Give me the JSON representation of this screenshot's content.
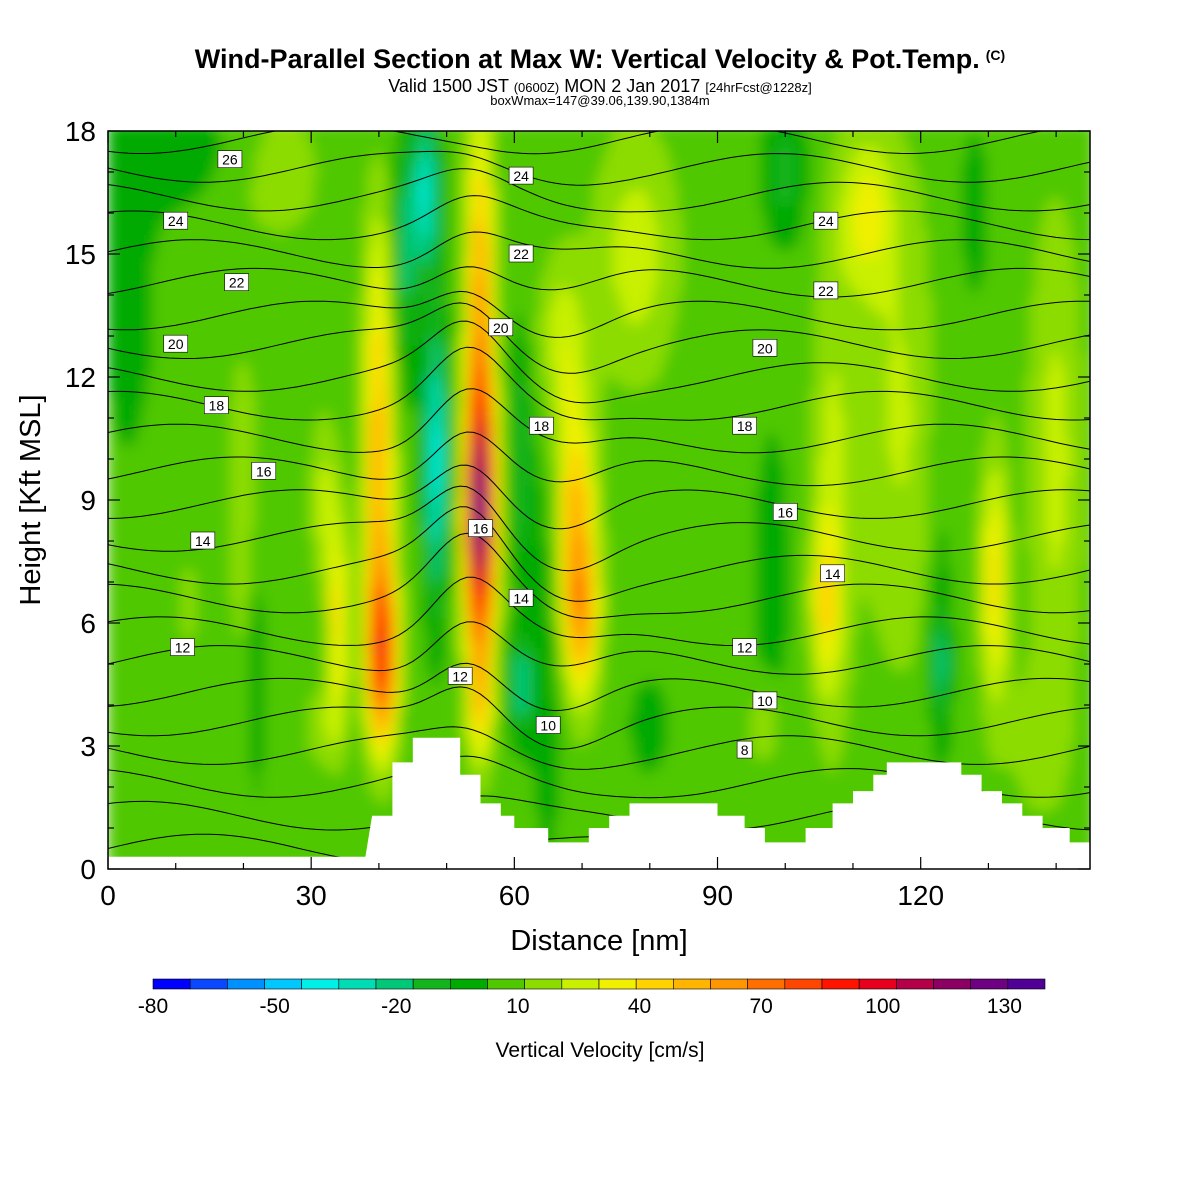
{
  "title": {
    "main": "Wind-Parallel Section at Max W: Vertical Velocity & Pot.Temp.",
    "copyright": "(C)",
    "valid_prefix": "Valid 1500 JST",
    "valid_z": "(0600Z)",
    "valid_date": "MON 2 Jan 2017",
    "valid_fcst": "[24hrFcst@1228z]",
    "box": "boxWmax=147@39.06,139.90,1384m"
  },
  "chart_data": {
    "type": "heatmap",
    "xlabel": "Distance [nm]",
    "ylabel": "Height [Kft MSL]",
    "xlim": [
      0,
      145
    ],
    "ylim": [
      0,
      18
    ],
    "xticks": [
      0,
      30,
      60,
      90,
      120
    ],
    "yticks": [
      0,
      3,
      6,
      9,
      12,
      15,
      18
    ],
    "colorbar": {
      "label": "Vertical Velocity [cm/s]",
      "ticks": [
        -80,
        -50,
        -20,
        10,
        40,
        70,
        100,
        130
      ],
      "range": [
        -80,
        140
      ],
      "colors": [
        "#0000ff",
        "#0a48ff",
        "#0090ff",
        "#00c8ff",
        "#00f0e8",
        "#00dcb4",
        "#00c878",
        "#14b41e",
        "#00aa00",
        "#50c800",
        "#8cdc00",
        "#c8f000",
        "#f0f000",
        "#ffd200",
        "#ffb400",
        "#ff9600",
        "#ff6e00",
        "#ff4600",
        "#ff1400",
        "#e6001e",
        "#b40046",
        "#8c0064",
        "#6e0082",
        "#500096"
      ]
    },
    "theta_contours": {
      "levels": [
        6,
        8,
        10,
        12,
        14,
        16,
        18,
        20,
        22,
        24,
        26
      ],
      "labels": [
        {
          "text": "26",
          "x": 18,
          "y": 17.3
        },
        {
          "text": "24",
          "x": 10,
          "y": 15.8
        },
        {
          "text": "22",
          "x": 19,
          "y": 14.3
        },
        {
          "text": "20",
          "x": 10,
          "y": 12.8
        },
        {
          "text": "18",
          "x": 16,
          "y": 11.3
        },
        {
          "text": "16",
          "x": 23,
          "y": 9.7
        },
        {
          "text": "14",
          "x": 14,
          "y": 8.0
        },
        {
          "text": "12",
          "x": 11,
          "y": 5.4
        },
        {
          "text": "24",
          "x": 61,
          "y": 16.9
        },
        {
          "text": "22",
          "x": 61,
          "y": 15.0
        },
        {
          "text": "20",
          "x": 58,
          "y": 13.2
        },
        {
          "text": "18",
          "x": 64,
          "y": 10.8
        },
        {
          "text": "16",
          "x": 55,
          "y": 8.3
        },
        {
          "text": "14",
          "x": 61,
          "y": 6.6
        },
        {
          "text": "12",
          "x": 52,
          "y": 4.7
        },
        {
          "text": "10",
          "x": 65,
          "y": 3.5
        },
        {
          "text": "24",
          "x": 106,
          "y": 15.8
        },
        {
          "text": "22",
          "x": 106,
          "y": 14.1
        },
        {
          "text": "20",
          "x": 97,
          "y": 12.7
        },
        {
          "text": "18",
          "x": 94,
          "y": 10.8
        },
        {
          "text": "16",
          "x": 100,
          "y": 8.7
        },
        {
          "text": "14",
          "x": 107,
          "y": 7.2
        },
        {
          "text": "12",
          "x": 94,
          "y": 5.4
        },
        {
          "text": "10",
          "x": 97,
          "y": 4.1
        },
        {
          "text": "8",
          "x": 94,
          "y": 2.9
        }
      ]
    },
    "terrain": [
      [
        0,
        0.3
      ],
      [
        38,
        0.3
      ],
      [
        39,
        1.3
      ],
      [
        42,
        1.3
      ],
      [
        42,
        2.6
      ],
      [
        45,
        2.6
      ],
      [
        45,
        3.2
      ],
      [
        52,
        3.2
      ],
      [
        52,
        2.3
      ],
      [
        55,
        2.3
      ],
      [
        55,
        1.6
      ],
      [
        58,
        1.6
      ],
      [
        58,
        1.3
      ],
      [
        60,
        1.3
      ],
      [
        60,
        1.0
      ],
      [
        65,
        1.0
      ],
      [
        65,
        0.65
      ],
      [
        71,
        0.65
      ],
      [
        71,
        1.0
      ],
      [
        74,
        1.0
      ],
      [
        74,
        1.3
      ],
      [
        77,
        1.3
      ],
      [
        77,
        1.6
      ],
      [
        90,
        1.6
      ],
      [
        90,
        1.3
      ],
      [
        94,
        1.3
      ],
      [
        94,
        1.0
      ],
      [
        97,
        1.0
      ],
      [
        97,
        0.65
      ],
      [
        103,
        0.65
      ],
      [
        103,
        1.0
      ],
      [
        107,
        1.0
      ],
      [
        107,
        1.6
      ],
      [
        110,
        1.6
      ],
      [
        110,
        1.9
      ],
      [
        113,
        1.9
      ],
      [
        113,
        2.3
      ],
      [
        115,
        2.3
      ],
      [
        115,
        2.6
      ],
      [
        126,
        2.6
      ],
      [
        126,
        2.3
      ],
      [
        129,
        2.3
      ],
      [
        129,
        1.9
      ],
      [
        132,
        1.9
      ],
      [
        132,
        1.6
      ],
      [
        135,
        1.6
      ],
      [
        135,
        1.3
      ],
      [
        138,
        1.3
      ],
      [
        138,
        1.0
      ],
      [
        142,
        1.0
      ],
      [
        142,
        0.65
      ],
      [
        145,
        0.65
      ]
    ]
  }
}
